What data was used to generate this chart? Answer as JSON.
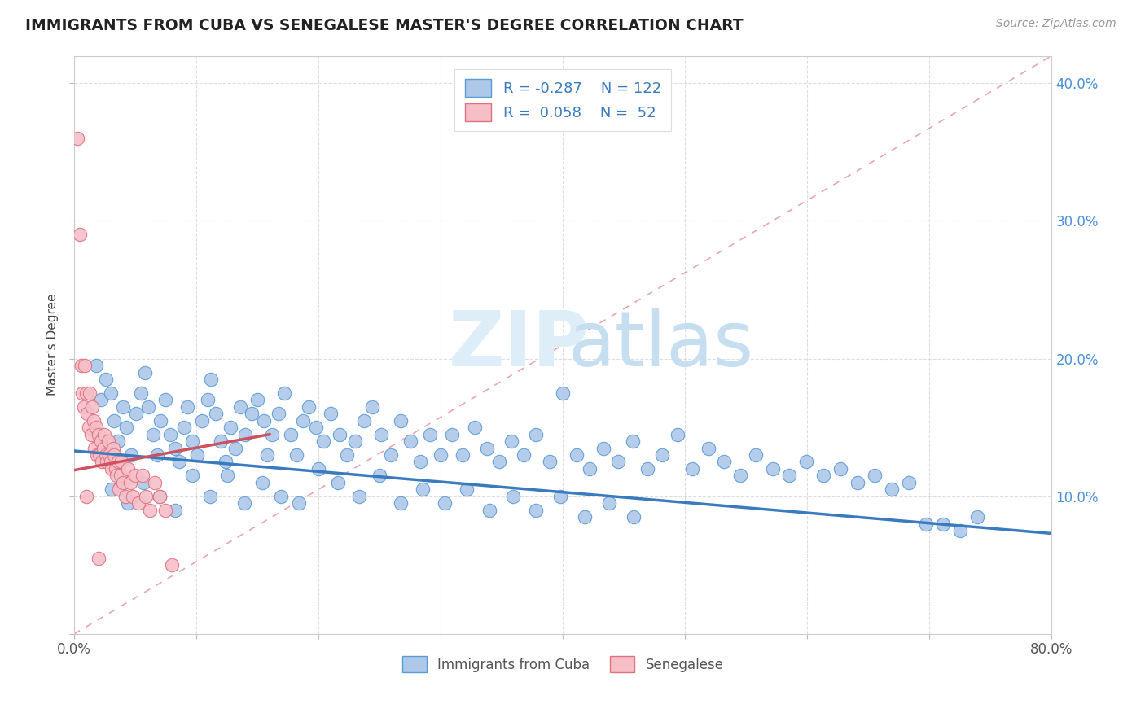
{
  "title": "IMMIGRANTS FROM CUBA VS SENEGALESE MASTER'S DEGREE CORRELATION CHART",
  "source_text": "Source: ZipAtlas.com",
  "ylabel": "Master's Degree",
  "xlim": [
    0.0,
    0.8
  ],
  "ylim": [
    0.0,
    0.42
  ],
  "color_blue": "#adc8e8",
  "color_blue_edge": "#5b9bd5",
  "color_blue_line": "#3a7bbf",
  "color_pink": "#f5bfc8",
  "color_pink_edge": "#e07080",
  "color_pink_line": "#d05060",
  "color_dashed": "#e08090",
  "blue_line_x0": 0.0,
  "blue_line_x1": 0.8,
  "blue_line_y0": 0.133,
  "blue_line_y1": 0.073,
  "pink_line_x0": 0.0,
  "pink_line_x1": 0.16,
  "pink_line_y0": 0.119,
  "pink_line_y1": 0.145,
  "blue_scatter_x": [
    0.018,
    0.022,
    0.026,
    0.03,
    0.033,
    0.036,
    0.04,
    0.043,
    0.047,
    0.051,
    0.055,
    0.058,
    0.061,
    0.065,
    0.068,
    0.071,
    0.075,
    0.079,
    0.083,
    0.086,
    0.09,
    0.093,
    0.097,
    0.101,
    0.105,
    0.109,
    0.112,
    0.116,
    0.12,
    0.124,
    0.128,
    0.132,
    0.136,
    0.14,
    0.145,
    0.15,
    0.155,
    0.158,
    0.162,
    0.167,
    0.172,
    0.177,
    0.182,
    0.187,
    0.192,
    0.198,
    0.204,
    0.21,
    0.217,
    0.223,
    0.23,
    0.237,
    0.244,
    0.251,
    0.259,
    0.267,
    0.275,
    0.283,
    0.291,
    0.3,
    0.309,
    0.318,
    0.328,
    0.338,
    0.348,
    0.358,
    0.368,
    0.378,
    0.389,
    0.4,
    0.411,
    0.422,
    0.433,
    0.445,
    0.457,
    0.469,
    0.481,
    0.494,
    0.506,
    0.519,
    0.532,
    0.545,
    0.558,
    0.572,
    0.585,
    0.599,
    0.613,
    0.627,
    0.641,
    0.655,
    0.669,
    0.683,
    0.697,
    0.711,
    0.725,
    0.739,
    0.031,
    0.044,
    0.057,
    0.07,
    0.083,
    0.097,
    0.111,
    0.125,
    0.139,
    0.154,
    0.169,
    0.184,
    0.2,
    0.216,
    0.233,
    0.25,
    0.267,
    0.285,
    0.303,
    0.321,
    0.34,
    0.359,
    0.378,
    0.398,
    0.418,
    0.438,
    0.458
  ],
  "blue_scatter_y": [
    0.195,
    0.17,
    0.185,
    0.175,
    0.155,
    0.14,
    0.165,
    0.15,
    0.13,
    0.16,
    0.175,
    0.19,
    0.165,
    0.145,
    0.13,
    0.155,
    0.17,
    0.145,
    0.135,
    0.125,
    0.15,
    0.165,
    0.14,
    0.13,
    0.155,
    0.17,
    0.185,
    0.16,
    0.14,
    0.125,
    0.15,
    0.135,
    0.165,
    0.145,
    0.16,
    0.17,
    0.155,
    0.13,
    0.145,
    0.16,
    0.175,
    0.145,
    0.13,
    0.155,
    0.165,
    0.15,
    0.14,
    0.16,
    0.145,
    0.13,
    0.14,
    0.155,
    0.165,
    0.145,
    0.13,
    0.155,
    0.14,
    0.125,
    0.145,
    0.13,
    0.145,
    0.13,
    0.15,
    0.135,
    0.125,
    0.14,
    0.13,
    0.145,
    0.125,
    0.175,
    0.13,
    0.12,
    0.135,
    0.125,
    0.14,
    0.12,
    0.13,
    0.145,
    0.12,
    0.135,
    0.125,
    0.115,
    0.13,
    0.12,
    0.115,
    0.125,
    0.115,
    0.12,
    0.11,
    0.115,
    0.105,
    0.11,
    0.08,
    0.08,
    0.075,
    0.085,
    0.105,
    0.095,
    0.11,
    0.1,
    0.09,
    0.115,
    0.1,
    0.115,
    0.095,
    0.11,
    0.1,
    0.095,
    0.12,
    0.11,
    0.1,
    0.115,
    0.095,
    0.105,
    0.095,
    0.105,
    0.09,
    0.1,
    0.09,
    0.1,
    0.085,
    0.095,
    0.085
  ],
  "pink_scatter_x": [
    0.003,
    0.005,
    0.006,
    0.007,
    0.008,
    0.009,
    0.01,
    0.011,
    0.012,
    0.013,
    0.014,
    0.015,
    0.016,
    0.017,
    0.018,
    0.019,
    0.02,
    0.021,
    0.022,
    0.023,
    0.024,
    0.025,
    0.026,
    0.027,
    0.028,
    0.029,
    0.03,
    0.031,
    0.032,
    0.033,
    0.034,
    0.035,
    0.036,
    0.037,
    0.038,
    0.039,
    0.04,
    0.042,
    0.044,
    0.046,
    0.048,
    0.05,
    0.053,
    0.056,
    0.059,
    0.062,
    0.066,
    0.07,
    0.075,
    0.08,
    0.01,
    0.02
  ],
  "pink_scatter_y": [
    0.36,
    0.29,
    0.195,
    0.175,
    0.165,
    0.195,
    0.175,
    0.16,
    0.15,
    0.175,
    0.145,
    0.165,
    0.155,
    0.135,
    0.15,
    0.13,
    0.145,
    0.13,
    0.14,
    0.125,
    0.135,
    0.145,
    0.13,
    0.125,
    0.14,
    0.13,
    0.125,
    0.12,
    0.135,
    0.13,
    0.12,
    0.115,
    0.125,
    0.105,
    0.115,
    0.125,
    0.11,
    0.1,
    0.12,
    0.11,
    0.1,
    0.115,
    0.095,
    0.115,
    0.1,
    0.09,
    0.11,
    0.1,
    0.09,
    0.05,
    0.1,
    0.055
  ]
}
